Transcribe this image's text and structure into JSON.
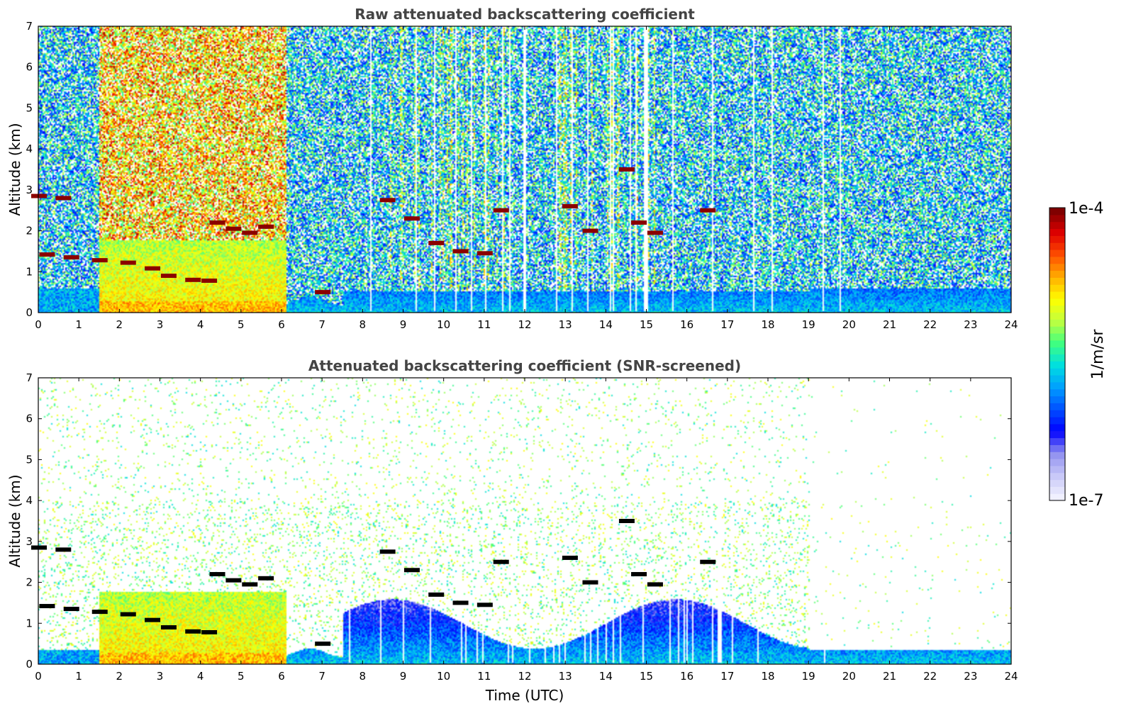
{
  "chart_data": [
    {
      "type": "heatmap",
      "title": "Raw attenuated backscattering coefficient",
      "xlabel": "",
      "ylabel": "Altitude (km)",
      "xlim": [
        0,
        24
      ],
      "ylim": [
        0,
        7
      ],
      "x_ticks": [
        0,
        1,
        2,
        3,
        4,
        5,
        6,
        7,
        8,
        9,
        10,
        11,
        12,
        13,
        14,
        15,
        16,
        17,
        18,
        19,
        20,
        21,
        22,
        23,
        24
      ],
      "y_ticks": [
        0,
        1,
        2,
        3,
        4,
        5,
        6,
        7
      ],
      "screened": false,
      "features": {
        "cloud_base_points": [
          [
            0.0,
            2.85
          ],
          [
            0.6,
            2.8
          ],
          [
            0.2,
            1.42
          ],
          [
            0.8,
            1.35
          ],
          [
            1.5,
            1.28
          ],
          [
            2.2,
            1.22
          ],
          [
            2.8,
            1.08
          ],
          [
            3.2,
            0.9
          ],
          [
            3.8,
            0.8
          ],
          [
            4.2,
            0.78
          ],
          [
            4.4,
            2.2
          ],
          [
            4.8,
            2.05
          ],
          [
            5.2,
            1.95
          ],
          [
            5.6,
            2.1
          ],
          [
            7.0,
            0.5
          ],
          [
            8.6,
            2.75
          ],
          [
            9.2,
            2.3
          ],
          [
            9.8,
            1.7
          ],
          [
            10.4,
            1.5
          ],
          [
            11.0,
            1.45
          ],
          [
            11.4,
            2.5
          ],
          [
            13.1,
            2.6
          ],
          [
            13.6,
            2.0
          ],
          [
            14.5,
            3.5
          ],
          [
            14.8,
            2.2
          ],
          [
            15.2,
            1.95
          ],
          [
            16.5,
            2.5
          ]
        ],
        "aerosol_top_km": 0.6
      }
    },
    {
      "type": "heatmap",
      "title": "Attenuated backscattering coefficient (SNR-screened)",
      "xlabel": "Time (UTC)",
      "ylabel": "Altitude (km)",
      "xlim": [
        0,
        24
      ],
      "ylim": [
        0,
        7
      ],
      "x_ticks": [
        0,
        1,
        2,
        3,
        4,
        5,
        6,
        7,
        8,
        9,
        10,
        11,
        12,
        13,
        14,
        15,
        16,
        17,
        18,
        19,
        20,
        21,
        22,
        23,
        24
      ],
      "y_ticks": [
        0,
        1,
        2,
        3,
        4,
        5,
        6,
        7
      ],
      "screened": true,
      "features": {
        "cloud_base_points": [
          [
            0.0,
            2.85
          ],
          [
            0.6,
            2.8
          ],
          [
            0.2,
            1.42
          ],
          [
            0.8,
            1.35
          ],
          [
            1.5,
            1.28
          ],
          [
            2.2,
            1.22
          ],
          [
            2.8,
            1.08
          ],
          [
            3.2,
            0.9
          ],
          [
            3.8,
            0.8
          ],
          [
            4.2,
            0.78
          ],
          [
            4.4,
            2.2
          ],
          [
            4.8,
            2.05
          ],
          [
            5.2,
            1.95
          ],
          [
            5.6,
            2.1
          ],
          [
            7.0,
            0.5
          ],
          [
            8.6,
            2.75
          ],
          [
            9.2,
            2.3
          ],
          [
            9.8,
            1.7
          ],
          [
            10.4,
            1.5
          ],
          [
            11.0,
            1.45
          ],
          [
            11.4,
            2.5
          ],
          [
            13.1,
            2.6
          ],
          [
            13.6,
            2.0
          ],
          [
            14.5,
            3.5
          ],
          [
            14.8,
            2.2
          ],
          [
            15.2,
            1.95
          ],
          [
            16.5,
            2.5
          ]
        ],
        "aerosol_top_km": 0.35
      }
    }
  ],
  "colorbar": {
    "label": "1/m/sr",
    "max_label": "1e-4",
    "min_label": "1e-7",
    "scale": "log",
    "colors": [
      "#f0f0ff",
      "#c8c8f8",
      "#9090f0",
      "#0000ff",
      "#0050ff",
      "#00a0ff",
      "#00e0e0",
      "#40ff80",
      "#c0ff40",
      "#ffff00",
      "#ffb000",
      "#ff5000",
      "#e00000",
      "#800000"
    ]
  }
}
